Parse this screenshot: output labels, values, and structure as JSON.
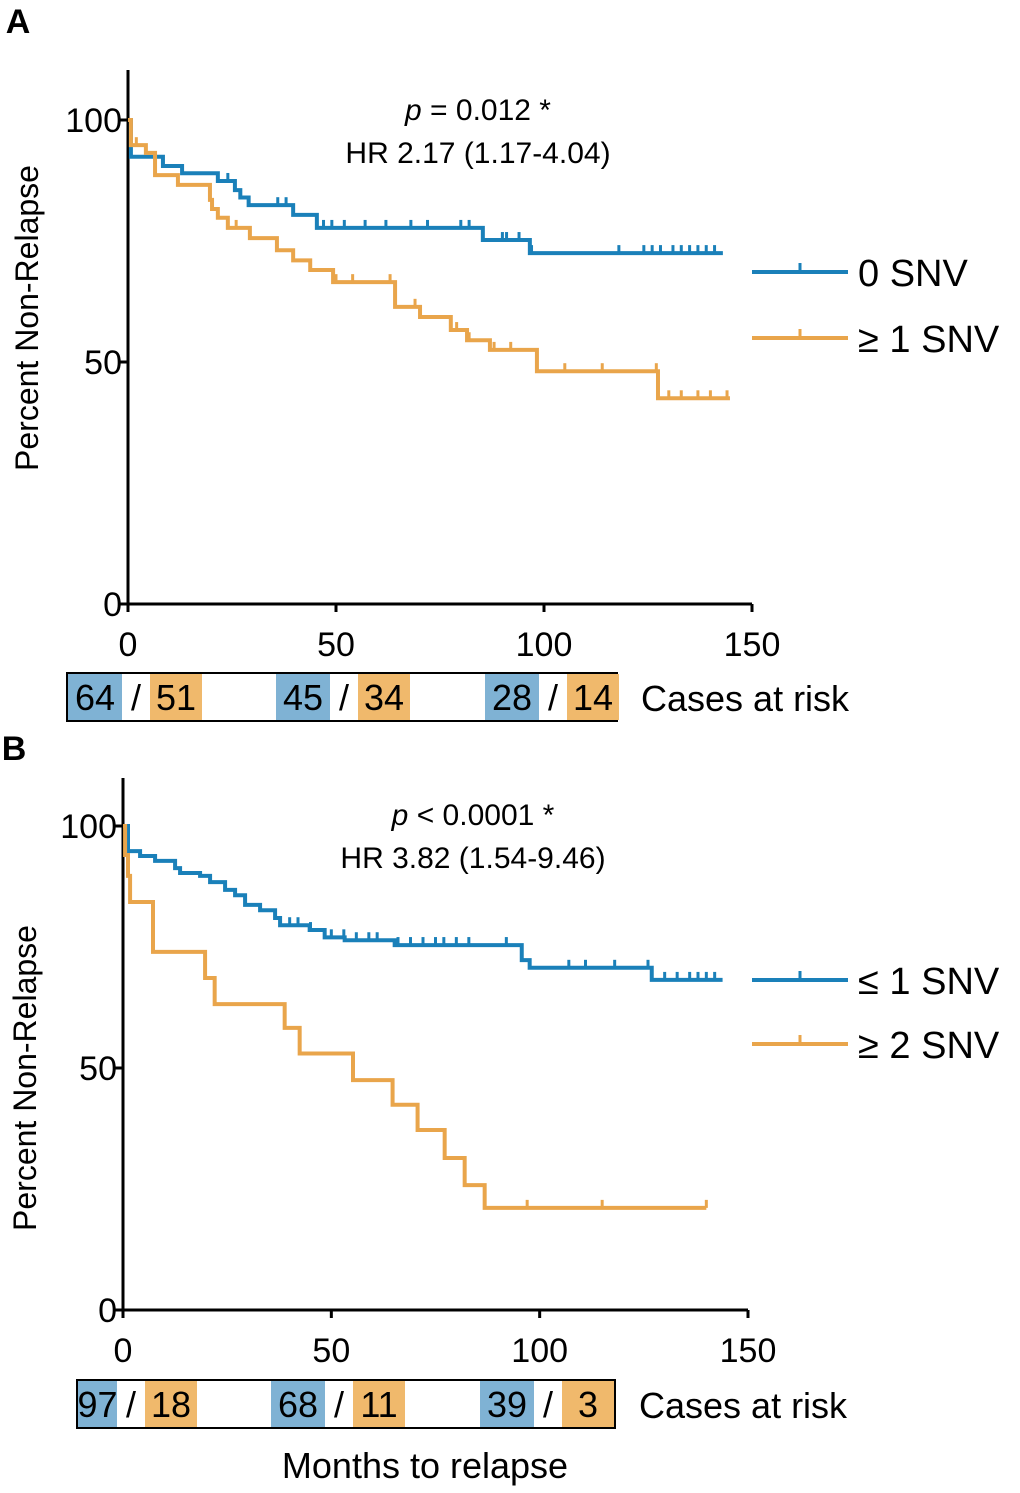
{
  "colors": {
    "blue": "#1a80b9",
    "orange": "#e9a54b",
    "blue_fill": "#7fb2d4",
    "orange_fill": "#f0b96c"
  },
  "x_axis_label": "Months to relapse",
  "chart_data": [
    {
      "type": "line",
      "panel_label": "A",
      "ylabel": "Percent Non-Relapse",
      "xlim": [
        0,
        150
      ],
      "ylim": [
        0,
        110
      ],
      "xticks": [
        "0",
        "50",
        "100",
        "150"
      ],
      "yticks": [
        "0",
        "50",
        "100"
      ],
      "annotation_p_symbol": "p",
      "annotation_p_rest": " = 0.012 *",
      "annotation_hr": "HR 2.17 (1.17-4.04)",
      "legend_placement": "right",
      "series": [
        {
          "name": "0 SNV",
          "color": "blue",
          "steps": [
            [
              0,
              100
            ],
            [
              0.7,
              92.4
            ],
            [
              8.4,
              90.5
            ],
            [
              13,
              89
            ],
            [
              21.6,
              87.4
            ],
            [
              25.7,
              85.5
            ],
            [
              27,
              84
            ],
            [
              29,
              82.4
            ],
            [
              39.7,
              80.4
            ],
            [
              45.4,
              77.7
            ],
            [
              85.3,
              75.2
            ],
            [
              96.6,
              72.5
            ],
            [
              143,
              72.5
            ]
          ],
          "censored": [
            24,
            36,
            38,
            47,
            49,
            52,
            57,
            62,
            68,
            72,
            80,
            82,
            90,
            91,
            94,
            97,
            118,
            124,
            126,
            128,
            131,
            133,
            135,
            137,
            139,
            141
          ]
        },
        {
          "name": "≥ 1 SNV",
          "color": "orange",
          "steps": [
            [
              0,
              100
            ],
            [
              0.7,
              94.8
            ],
            [
              4.3,
              93.2
            ],
            [
              6.5,
              88.6
            ],
            [
              12,
              86.6
            ],
            [
              19.7,
              83.5
            ],
            [
              20.2,
              81.6
            ],
            [
              21.6,
              79.8
            ],
            [
              24,
              77.7
            ],
            [
              29.3,
              75.6
            ],
            [
              35.8,
              73.1
            ],
            [
              39.7,
              71
            ],
            [
              43.8,
              69
            ],
            [
              49.3,
              66.5
            ],
            [
              64.2,
              61.4
            ],
            [
              70.2,
              59.3
            ],
            [
              77.6,
              56.6
            ],
            [
              81.5,
              54.5
            ],
            [
              87,
              52.5
            ],
            [
              98.3,
              48.1
            ],
            [
              127.4,
              42.5
            ],
            [
              144.7,
              42.5
            ]
          ],
          "censored": [
            2,
            26,
            50,
            54,
            63,
            69,
            79,
            82,
            88,
            92,
            105,
            114,
            127,
            130,
            133,
            137,
            140,
            144
          ]
        }
      ],
      "risk_table": {
        "label": "Cases at risk",
        "groups": [
          [
            "64",
            "51"
          ],
          [
            "45",
            "34"
          ],
          [
            "28",
            "14"
          ]
        ]
      }
    },
    {
      "type": "line",
      "panel_label": "B",
      "ylabel": "Percent Non-Relapse",
      "xlim": [
        0,
        150
      ],
      "ylim": [
        0,
        110
      ],
      "xticks": [
        "0",
        "50",
        "100",
        "150"
      ],
      "yticks": [
        "0",
        "50",
        "100"
      ],
      "annotation_p_symbol": "p",
      "annotation_p_rest": " < 0.0001 *",
      "annotation_hr": "HR 3.82 (1.54-9.46)",
      "legend_placement": "right",
      "series": [
        {
          "name": "≤ 1 SNV",
          "color": "blue",
          "steps": [
            [
              0,
              100
            ],
            [
              1.2,
              94.8
            ],
            [
              4.1,
              93.8
            ],
            [
              7.7,
              92.8
            ],
            [
              12.5,
              91.3
            ],
            [
              13.7,
              90.3
            ],
            [
              18.5,
              89.7
            ],
            [
              20.9,
              88.4
            ],
            [
              24.5,
              86.8
            ],
            [
              26.9,
              85.7
            ],
            [
              29.3,
              83.7
            ],
            [
              32.9,
              82.6
            ],
            [
              36.5,
              81
            ],
            [
              37.7,
              79.5
            ],
            [
              44.8,
              78.5
            ],
            [
              48.4,
              77
            ],
            [
              53.2,
              76.4
            ],
            [
              65.2,
              75.4
            ],
            [
              95.7,
              72.3
            ],
            [
              97.6,
              70.7
            ],
            [
              126.9,
              68.2
            ],
            [
              143.9,
              68.2
            ]
          ],
          "censored": [
            21,
            40,
            42,
            45,
            50,
            53,
            56,
            59,
            61,
            66,
            69,
            72,
            75,
            77,
            80,
            83,
            92,
            107,
            111,
            118,
            126,
            130,
            133,
            136,
            138,
            140,
            142
          ]
        },
        {
          "name": "≥ 2 SNV",
          "color": "orange",
          "steps": [
            [
              0,
              100
            ],
            [
              0.5,
              94
            ],
            [
              1.2,
              89.7
            ],
            [
              1.7,
              84.3
            ],
            [
              7.2,
              74
            ],
            [
              19.7,
              68.6
            ],
            [
              22,
              63.2
            ],
            [
              38.8,
              58.3
            ],
            [
              42.4,
              53
            ],
            [
              55.2,
              47.5
            ],
            [
              64.7,
              42.4
            ],
            [
              70.7,
              37.2
            ],
            [
              77.2,
              31.4
            ],
            [
              82,
              25.8
            ],
            [
              86.8,
              21.1
            ],
            [
              140,
              21.1
            ]
          ],
          "censored": [
            97,
            115,
            140
          ]
        }
      ],
      "risk_table": {
        "label": "Cases at risk",
        "groups": [
          [
            "97",
            "18"
          ],
          [
            "68",
            "11"
          ],
          [
            "39",
            "3"
          ]
        ]
      }
    }
  ]
}
